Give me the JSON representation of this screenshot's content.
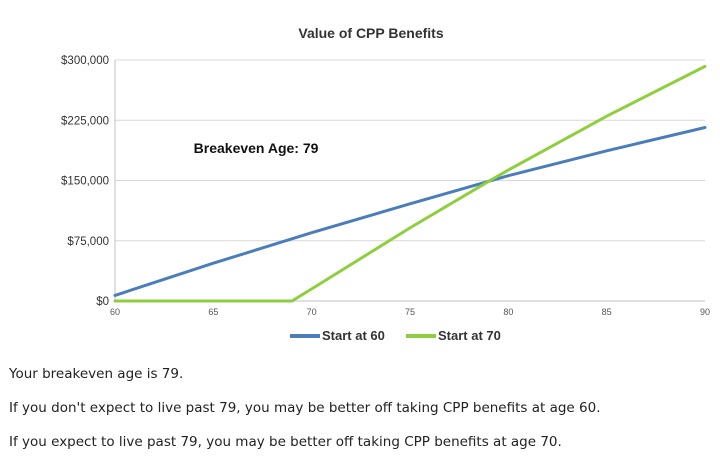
{
  "chart_data": {
    "type": "line",
    "title": "Value of CPP Benefits",
    "xlabel": "",
    "ylabel": "",
    "xlim": [
      60,
      90
    ],
    "ylim": [
      0,
      300000
    ],
    "x_ticks": [
      60,
      65,
      70,
      75,
      80,
      85,
      90
    ],
    "y_ticks": [
      0,
      75000,
      150000,
      225000,
      300000
    ],
    "y_tick_labels": [
      "$0",
      "$75,000",
      "$150,000",
      "$225,000",
      "$300,000"
    ],
    "grid": true,
    "legend": "bottom",
    "annotation": {
      "text": "Breakeven Age: 79",
      "x": 64,
      "y": 184000
    },
    "series": [
      {
        "name": "Start at 60",
        "color": "#4a7ebb",
        "x": [
          60,
          65,
          70,
          75,
          79,
          80,
          85,
          90
        ],
        "y": [
          7000,
          47000,
          85000,
          121000,
          149000,
          156000,
          187000,
          216000
        ]
      },
      {
        "name": "Start at 70",
        "color": "#8fcf3f",
        "x": [
          60,
          69,
          70,
          75,
          79,
          80,
          85,
          90
        ],
        "y": [
          0,
          0,
          15000,
          91000,
          149000,
          163000,
          230000,
          292000
        ]
      }
    ]
  },
  "notes": [
    "Your breakeven age is 79.",
    "If you don't expect to live past 79, you may be better off taking CPP benefits at age 60.",
    "If you expect to live past 79, you may be better off taking CPP benefits at age 70."
  ]
}
